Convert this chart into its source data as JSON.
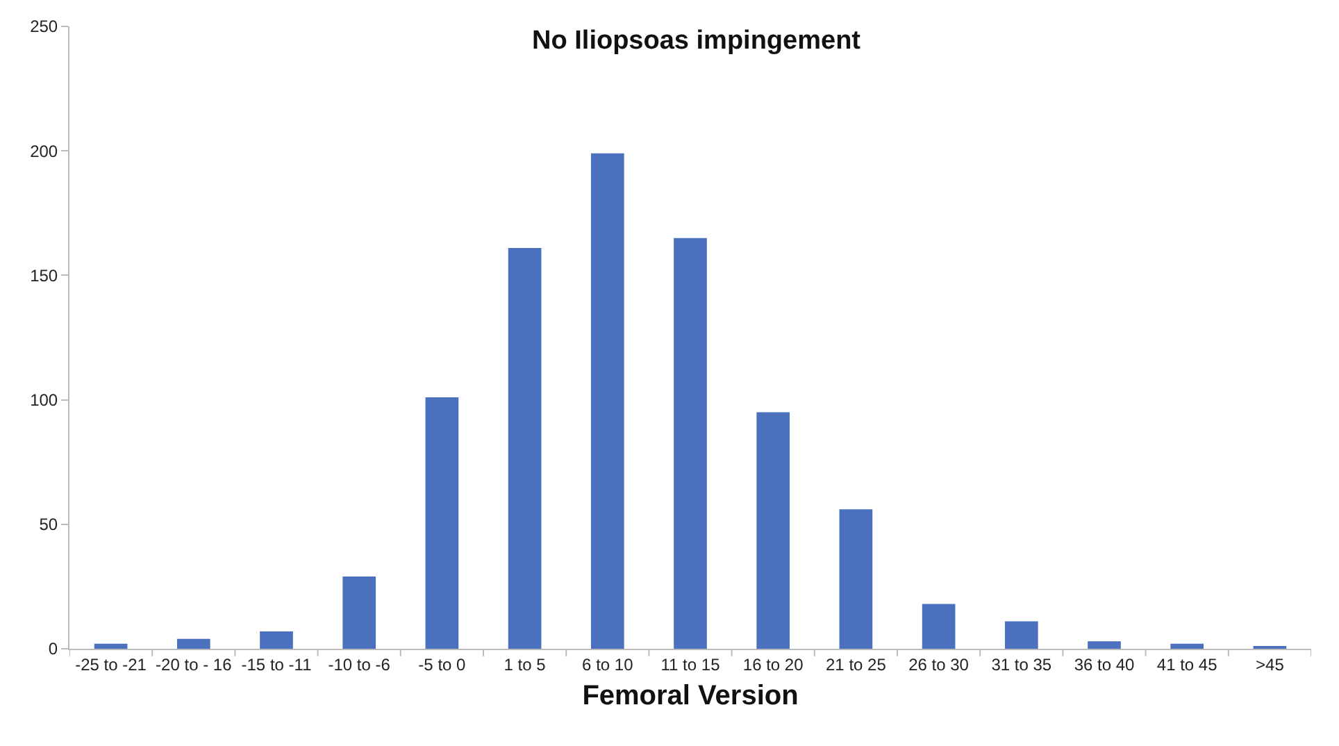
{
  "chart_data": {
    "type": "bar",
    "title": "No Iliopsoas impingement",
    "xlabel": "Femoral Version",
    "categories": [
      "-25 to -21",
      "-20 to - 16",
      "-15 to -11",
      "-10 to -6",
      "-5 to 0",
      "1 to 5",
      "6 to 10",
      "11 to 15",
      "16 to 20",
      "21 to 25",
      "26 to 30",
      "31 to 35",
      "36 to 40",
      "41 to 45",
      ">45"
    ],
    "values": [
      2,
      4,
      7,
      29,
      101,
      161,
      199,
      165,
      95,
      56,
      18,
      11,
      3,
      2,
      1
    ],
    "color": "#4a70be",
    "ylim": [
      0,
      250
    ],
    "yticks": [
      0,
      50,
      100,
      150,
      200,
      250
    ],
    "legend": false
  }
}
